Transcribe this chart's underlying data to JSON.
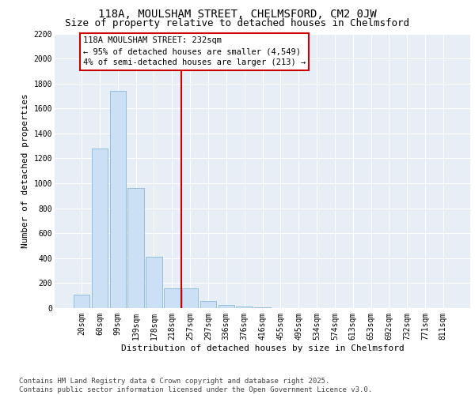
{
  "title_line1": "118A, MOULSHAM STREET, CHELMSFORD, CM2 0JW",
  "title_line2": "Size of property relative to detached houses in Chelmsford",
  "xlabel": "Distribution of detached houses by size in Chelmsford",
  "ylabel": "Number of detached properties",
  "bar_labels": [
    "20sqm",
    "60sqm",
    "99sqm",
    "139sqm",
    "178sqm",
    "218sqm",
    "257sqm",
    "297sqm",
    "336sqm",
    "376sqm",
    "416sqm",
    "455sqm",
    "495sqm",
    "534sqm",
    "574sqm",
    "613sqm",
    "653sqm",
    "692sqm",
    "732sqm",
    "771sqm",
    "811sqm"
  ],
  "bar_values": [
    110,
    1280,
    1740,
    960,
    410,
    160,
    160,
    60,
    25,
    10,
    5,
    3,
    2,
    1,
    1,
    1,
    0,
    0,
    0,
    0,
    0
  ],
  "bar_color": "#cce0f5",
  "bar_edge_color": "#8ab8d8",
  "background_color": "#e8eef5",
  "grid_color": "#ffffff",
  "ylim_max": 2200,
  "yticks": [
    0,
    200,
    400,
    600,
    800,
    1000,
    1200,
    1400,
    1600,
    1800,
    2000,
    2200
  ],
  "vline_bin_index": 5,
  "annotation_text_line1": "118A MOULSHAM STREET: 232sqm",
  "annotation_text_line2": "← 95% of detached houses are smaller (4,549)",
  "annotation_text_line3": "4% of semi-detached houses are larger (213) →",
  "annotation_color": "#cc0000",
  "footer_line1": "Contains HM Land Registry data © Crown copyright and database right 2025.",
  "footer_line2": "Contains public sector information licensed under the Open Government Licence v3.0.",
  "title_fontsize": 10,
  "subtitle_fontsize": 9,
  "axis_label_fontsize": 8,
  "tick_fontsize": 7,
  "annotation_fontsize": 7.5,
  "footer_fontsize": 6.5
}
